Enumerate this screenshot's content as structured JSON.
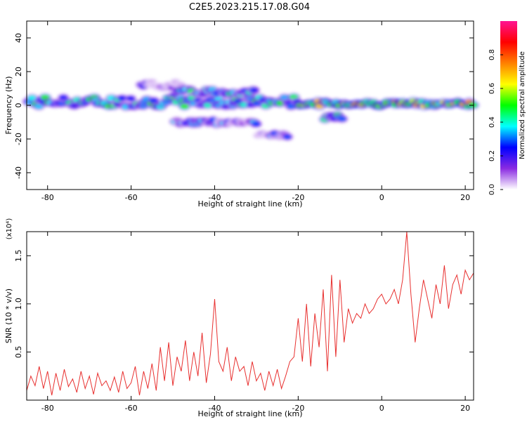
{
  "title": "C2E5.2023.215.17.08.G04",
  "chart_data": [
    {
      "type": "heatmap",
      "xlabel": "Height of straight line (km)",
      "ylabel": "Frequency (Hz)",
      "xlim": [
        -85,
        22
      ],
      "ylim": [
        -50,
        50
      ],
      "xticks": [
        -80,
        -60,
        -40,
        -20,
        0,
        20
      ],
      "yticks": [
        -40,
        -20,
        0,
        20,
        40
      ],
      "colorbar": {
        "label": "Normalized spectral amplitude",
        "range": [
          0,
          1
        ],
        "ticks": [
          "0.0",
          "0.2",
          "0.4",
          "0.6",
          "0.8"
        ],
        "colormap": [
          "#ffffff",
          "#8a2be2",
          "#0000ff",
          "#00ffff",
          "#00ff00",
          "#ffff00",
          "#ff8000",
          "#ff0000",
          "#ff1493"
        ]
      },
      "bands": [
        {
          "x_start": -85,
          "x_end": -20,
          "freq": 2,
          "width": 6,
          "amplitude": 0.35
        },
        {
          "x_start": -20,
          "x_end": 22,
          "freq": 1,
          "width": 3,
          "amplitude": 0.55
        },
        {
          "x_start": -58,
          "x_end": -48,
          "freq": 12,
          "width": 4,
          "amplitude": 0.1
        },
        {
          "x_start": -50,
          "x_end": -30,
          "freq": 8,
          "width": 4,
          "amplitude": 0.3
        },
        {
          "x_start": -50,
          "x_end": -30,
          "freq": -10,
          "width": 3,
          "amplitude": 0.2
        },
        {
          "x_start": -14,
          "x_end": -9,
          "freq": -7,
          "width": 3,
          "amplitude": 0.3
        },
        {
          "x_start": -30,
          "x_end": -22,
          "freq": -18,
          "width": 3,
          "amplitude": 0.15
        }
      ]
    },
    {
      "type": "line",
      "xlabel": "Height of straight line (km)",
      "ylabel": "SNR (10 * v/v)",
      "y_multiplier": "(x10⁴)",
      "xlim": [
        -85,
        22
      ],
      "ylim": [
        0,
        1.75
      ],
      "xticks": [
        -80,
        -60,
        -40,
        -20,
        0,
        20
      ],
      "yticks": [
        0.5,
        1.0,
        1.5
      ],
      "series": [
        {
          "color": "#e8302f",
          "x": [
            -85,
            -84,
            -83,
            -82,
            -81,
            -80,
            -79,
            -78,
            -77,
            -76,
            -75,
            -74,
            -73,
            -72,
            -71,
            -70,
            -69,
            -68,
            -67,
            -66,
            -65,
            -64,
            -63,
            -62,
            -61,
            -60,
            -59,
            -58,
            -57,
            -56,
            -55,
            -54,
            -53,
            -52,
            -51,
            -50,
            -49,
            -48,
            -47,
            -46,
            -45,
            -44,
            -43,
            -42,
            -41,
            -40,
            -39,
            -38,
            -37,
            -36,
            -35,
            -34,
            -33,
            -32,
            -31,
            -30,
            -29,
            -28,
            -27,
            -26,
            -25,
            -24,
            -23,
            -22,
            -21,
            -20,
            -19,
            -18,
            -17,
            -16,
            -15,
            -14,
            -13,
            -12,
            -11,
            -10,
            -9,
            -8,
            -7,
            -6,
            -5,
            -4,
            -3,
            -2,
            -1,
            0,
            1,
            2,
            3,
            4,
            5,
            6,
            7,
            8,
            9,
            10,
            11,
            12,
            13,
            14,
            15,
            16,
            17,
            18,
            19,
            20,
            21,
            22
          ],
          "values": [
            0.1,
            0.25,
            0.15,
            0.35,
            0.12,
            0.3,
            0.05,
            0.28,
            0.1,
            0.32,
            0.14,
            0.22,
            0.08,
            0.3,
            0.12,
            0.25,
            0.06,
            0.28,
            0.15,
            0.2,
            0.1,
            0.24,
            0.08,
            0.3,
            0.12,
            0.18,
            0.35,
            0.05,
            0.3,
            0.12,
            0.38,
            0.1,
            0.55,
            0.2,
            0.6,
            0.15,
            0.45,
            0.3,
            0.62,
            0.2,
            0.5,
            0.25,
            0.7,
            0.18,
            0.48,
            1.05,
            0.4,
            0.3,
            0.55,
            0.2,
            0.45,
            0.3,
            0.35,
            0.15,
            0.4,
            0.2,
            0.28,
            0.1,
            0.3,
            0.15,
            0.32,
            0.12,
            0.25,
            0.4,
            0.45,
            0.85,
            0.4,
            1.0,
            0.35,
            0.9,
            0.55,
            1.15,
            0.3,
            1.3,
            0.45,
            1.25,
            0.6,
            0.95,
            0.8,
            0.9,
            0.85,
            1.0,
            0.9,
            0.95,
            1.05,
            1.1,
            1.0,
            1.05,
            1.15,
            1.0,
            1.25,
            1.75,
            1.1,
            0.6,
            0.95,
            1.25,
            1.05,
            0.85,
            1.2,
            1.0,
            1.4,
            0.95,
            1.2,
            1.3,
            1.1,
            1.35,
            1.25,
            1.32
          ]
        }
      ]
    }
  ]
}
